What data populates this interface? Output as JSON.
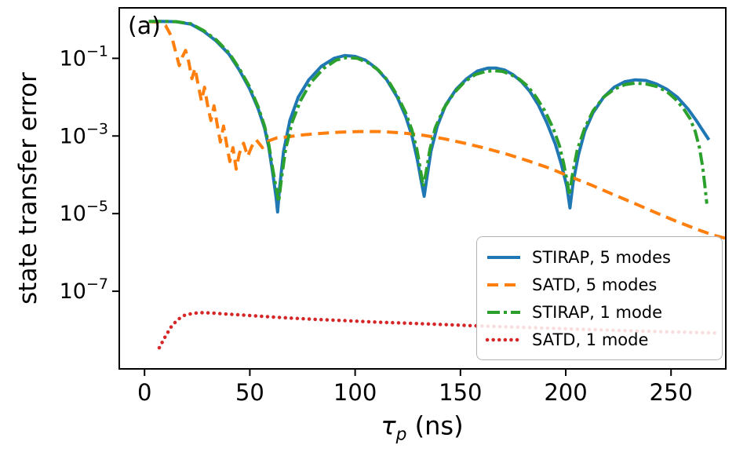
{
  "figure": {
    "panel_label": "(a)",
    "ylabel": "state transfer error",
    "xlabel": {
      "symbol": "τ",
      "subscript": "p",
      "unit": " (ns)"
    }
  },
  "chart_data": {
    "type": "line",
    "title": "",
    "xlabel": "tau_p (ns)",
    "ylabel": "state transfer error",
    "grid": false,
    "x_axis": {
      "ticks": [
        0,
        50,
        100,
        150,
        200,
        250
      ],
      "lim": [
        -12,
        276
      ]
    },
    "y_axis": {
      "scale": "log",
      "tick_exponents": [
        -1,
        -3,
        -5,
        -7
      ],
      "lim": [
        1e-09,
        2
      ]
    },
    "legend": {
      "position": "lower right"
    },
    "series": [
      {
        "name": "STIRAP, 5 modes",
        "color": "#1f77b4",
        "style": "solid",
        "width": 4,
        "points": [
          [
            2,
            0.89
          ],
          [
            8,
            0.9
          ],
          [
            15,
            0.88
          ],
          [
            22,
            0.76
          ],
          [
            28,
            0.5
          ],
          [
            34,
            0.28
          ],
          [
            40,
            0.13
          ],
          [
            45,
            0.05
          ],
          [
            50,
            0.016
          ],
          [
            54,
            0.005
          ],
          [
            57,
            0.0016
          ],
          [
            59,
            0.0005
          ],
          [
            61,
            0.0001
          ],
          [
            62.5,
            2.5e-05
          ],
          [
            63.2,
            1.1e-05
          ],
          [
            64,
            4e-05
          ],
          [
            66,
            0.0004
          ],
          [
            69,
            0.0025
          ],
          [
            73,
            0.01
          ],
          [
            78,
            0.028
          ],
          [
            84,
            0.063
          ],
          [
            90,
            0.1
          ],
          [
            95,
            0.118
          ],
          [
            100,
            0.112
          ],
          [
            105,
            0.089
          ],
          [
            110,
            0.056
          ],
          [
            115,
            0.028
          ],
          [
            120,
            0.01
          ],
          [
            124,
            0.0032
          ],
          [
            127,
            0.001
          ],
          [
            129.5,
            0.00025
          ],
          [
            131.5,
            6.3e-05
          ],
          [
            132.8,
            2.8e-05
          ],
          [
            134,
            8e-05
          ],
          [
            136,
            0.0004
          ],
          [
            139,
            0.0018
          ],
          [
            143,
            0.0063
          ],
          [
            148,
            0.016
          ],
          [
            153,
            0.03
          ],
          [
            158,
            0.047
          ],
          [
            163,
            0.056
          ],
          [
            167,
            0.056
          ],
          [
            171,
            0.05
          ],
          [
            175,
            0.038
          ],
          [
            179,
            0.025
          ],
          [
            183,
            0.014
          ],
          [
            187,
            0.0063
          ],
          [
            191,
            0.0022
          ],
          [
            195,
            0.00063
          ],
          [
            198,
            0.00018
          ],
          [
            200.5,
            5e-05
          ],
          [
            202,
            1.4e-05
          ],
          [
            203.5,
            6.3e-05
          ],
          [
            206,
            0.00032
          ],
          [
            209,
            0.0013
          ],
          [
            213,
            0.004
          ],
          [
            218,
            0.01
          ],
          [
            223,
            0.018
          ],
          [
            228,
            0.025
          ],
          [
            233,
            0.028
          ],
          [
            238,
            0.027
          ],
          [
            243,
            0.022
          ],
          [
            248,
            0.016
          ],
          [
            253,
            0.01
          ],
          [
            258,
            0.005
          ],
          [
            262,
            0.0025
          ],
          [
            265,
            0.0014
          ],
          [
            268,
            0.0008
          ]
        ]
      },
      {
        "name": "SATD, 5 modes",
        "color": "#ff7f0e",
        "style": "dashed",
        "width": 4,
        "points": [
          [
            2,
            0.89
          ],
          [
            7,
            0.85
          ],
          [
            10,
            0.7
          ],
          [
            13,
            0.35
          ],
          [
            15,
            0.13
          ],
          [
            16.5,
            0.065
          ],
          [
            18,
            0.11
          ],
          [
            19.5,
            0.16
          ],
          [
            21,
            0.08
          ],
          [
            22.5,
            0.03
          ],
          [
            24,
            0.055
          ],
          [
            25.5,
            0.02
          ],
          [
            27,
            0.008
          ],
          [
            28.5,
            0.018
          ],
          [
            30,
            0.006
          ],
          [
            31.5,
            0.0025
          ],
          [
            33,
            0.006
          ],
          [
            34.5,
            0.002
          ],
          [
            36,
            0.0007
          ],
          [
            37.5,
            0.0018
          ],
          [
            39,
            0.0006
          ],
          [
            40.5,
            0.00022
          ],
          [
            42,
            0.0005
          ],
          [
            43.5,
            0.00014
          ],
          [
            45,
            0.00035
          ],
          [
            47,
            0.00065
          ],
          [
            49,
            0.0003
          ],
          [
            51,
            0.00055
          ],
          [
            53,
            0.0008
          ],
          [
            56,
            0.0005
          ],
          [
            59,
            0.00075
          ],
          [
            63,
            0.0009
          ],
          [
            68,
            0.00095
          ],
          [
            74,
            0.00105
          ],
          [
            82,
            0.00115
          ],
          [
            92,
            0.00125
          ],
          [
            102,
            0.0013
          ],
          [
            112,
            0.0013
          ],
          [
            122,
            0.0012
          ],
          [
            132,
            0.00105
          ],
          [
            142,
            0.00085
          ],
          [
            152,
            0.00065
          ],
          [
            162,
            0.00048
          ],
          [
            172,
            0.00034
          ],
          [
            182,
            0.00023
          ],
          [
            192,
            0.00015
          ],
          [
            202,
            9e-05
          ],
          [
            212,
            5.5e-05
          ],
          [
            222,
            3.2e-05
          ],
          [
            232,
            1.9e-05
          ],
          [
            242,
            1.1e-05
          ],
          [
            252,
            6.5e-06
          ],
          [
            262,
            4e-06
          ],
          [
            270,
            2.8e-06
          ],
          [
            276,
            2.3e-06
          ]
        ]
      },
      {
        "name": "STIRAP, 1 mode",
        "color": "#2ca02c",
        "style": "dashdot",
        "width": 4,
        "points": [
          [
            2,
            0.89
          ],
          [
            8,
            0.9
          ],
          [
            15,
            0.88
          ],
          [
            22,
            0.78
          ],
          [
            28,
            0.52
          ],
          [
            34,
            0.3
          ],
          [
            40,
            0.14
          ],
          [
            45,
            0.055
          ],
          [
            50,
            0.018
          ],
          [
            54,
            0.0056
          ],
          [
            57,
            0.0018
          ],
          [
            59,
            0.0006
          ],
          [
            61,
            0.00013
          ],
          [
            62.7,
            4e-05
          ],
          [
            63.7,
            2e-05
          ],
          [
            65,
            8e-05
          ],
          [
            67,
            0.00045
          ],
          [
            70,
            0.0022
          ],
          [
            74,
            0.008
          ],
          [
            79,
            0.024
          ],
          [
            85,
            0.055
          ],
          [
            91,
            0.09
          ],
          [
            96,
            0.105
          ],
          [
            101,
            0.1
          ],
          [
            106,
            0.078
          ],
          [
            111,
            0.05
          ],
          [
            116,
            0.025
          ],
          [
            120,
            0.011
          ],
          [
            124,
            0.004
          ],
          [
            127,
            0.0014
          ],
          [
            129.3,
            0.00045
          ],
          [
            131,
            0.00014
          ],
          [
            132.3,
            5e-05
          ],
          [
            133.6,
            0.00011
          ],
          [
            135.5,
            0.00045
          ],
          [
            138,
            0.0016
          ],
          [
            142,
            0.005
          ],
          [
            147,
            0.013
          ],
          [
            152,
            0.025
          ],
          [
            157,
            0.038
          ],
          [
            162,
            0.046
          ],
          [
            166,
            0.048
          ],
          [
            170,
            0.046
          ],
          [
            174,
            0.038
          ],
          [
            178,
            0.029
          ],
          [
            182,
            0.019
          ],
          [
            186,
            0.01
          ],
          [
            190,
            0.0045
          ],
          [
            194,
            0.0016
          ],
          [
            197,
            0.00056
          ],
          [
            199,
            0.0002
          ],
          [
            200.6,
            7e-05
          ],
          [
            201.8,
            3e-05
          ],
          [
            203,
            9e-05
          ],
          [
            205.5,
            0.00045
          ],
          [
            209,
            0.0016
          ],
          [
            213,
            0.0045
          ],
          [
            218,
            0.01
          ],
          [
            223,
            0.016
          ],
          [
            228,
            0.021
          ],
          [
            233,
            0.023
          ],
          [
            238,
            0.022
          ],
          [
            243,
            0.019
          ],
          [
            248,
            0.014
          ],
          [
            252,
            0.009
          ],
          [
            256,
            0.005
          ],
          [
            259,
            0.0028
          ],
          [
            261.5,
            0.0013
          ],
          [
            263.5,
            0.0005
          ],
          [
            265,
            0.00016
          ],
          [
            266.3,
            4e-05
          ],
          [
            267,
            1.8e-05
          ]
        ]
      },
      {
        "name": "SATD, 1 mode",
        "color": "#d62728",
        "style": "dotted",
        "width": 4.5,
        "points": [
          [
            7,
            3.5e-09
          ],
          [
            10,
            7e-09
          ],
          [
            13,
            1.3e-08
          ],
          [
            16,
            1.9e-08
          ],
          [
            19,
            2.4e-08
          ],
          [
            23,
            2.7e-08
          ],
          [
            27,
            2.8e-08
          ],
          [
            32,
            2.75e-08
          ],
          [
            38,
            2.6e-08
          ],
          [
            46,
            2.45e-08
          ],
          [
            56,
            2.25e-08
          ],
          [
            68,
            2.05e-08
          ],
          [
            80,
            1.9e-08
          ],
          [
            95,
            1.75e-08
          ],
          [
            110,
            1.6e-08
          ],
          [
            125,
            1.5e-08
          ],
          [
            140,
            1.4e-08
          ],
          [
            155,
            1.3e-08
          ],
          [
            170,
            1.22e-08
          ],
          [
            185,
            1.15e-08
          ],
          [
            200,
            1.08e-08
          ],
          [
            215,
            1.02e-08
          ],
          [
            230,
            9.6e-09
          ],
          [
            245,
            9.1e-09
          ],
          [
            260,
            8.7e-09
          ],
          [
            272,
            8.4e-09
          ]
        ]
      }
    ]
  }
}
